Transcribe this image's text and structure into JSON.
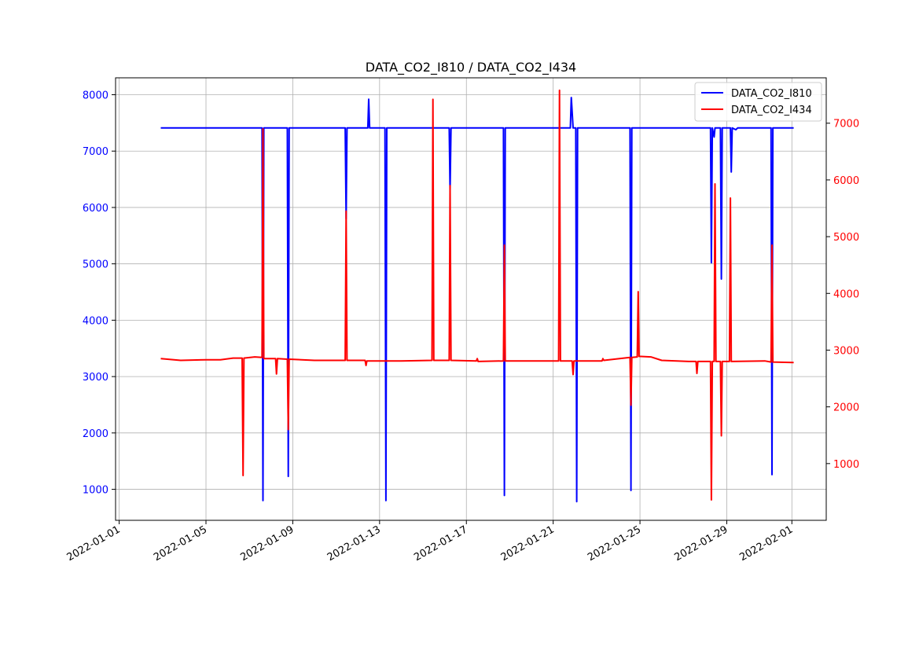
{
  "chart_data": {
    "type": "line",
    "title": "DATA_CO2_I810 / DATA_CO2_I434",
    "xlabel": "",
    "ylabel_left": "",
    "ylabel_right": "",
    "grid": true,
    "legend_position": "top-right",
    "x_ticks": [
      "2022-01-01",
      "2022-01-05",
      "2022-01-09",
      "2022-01-13",
      "2022-01-17",
      "2022-01-21",
      "2022-01-25",
      "2022-01-29",
      "2022-02-01"
    ],
    "xlim": [
      "2021-12-31T20:00",
      "2022-02-02T14:00"
    ],
    "y_left": {
      "lim": [
        450,
        8300
      ],
      "ticks": [
        1000,
        2000,
        3000,
        4000,
        5000,
        6000,
        7000,
        8000
      ],
      "color": "#0000ff"
    },
    "y_right": {
      "lim": [
        0,
        7800
      ],
      "ticks": [
        1000,
        2000,
        3000,
        4000,
        5000,
        6000,
        7000
      ],
      "color": "#ff0000"
    },
    "series": [
      {
        "name": "DATA_CO2_I810",
        "axis": "left",
        "color": "#0000ff",
        "points": [
          [
            "2022-01-02T22:00",
            7410
          ],
          [
            "2022-01-07T14:00",
            7410
          ],
          [
            "2022-01-07T15:00",
            800
          ],
          [
            "2022-01-07T16:00",
            7410
          ],
          [
            "2022-01-08T18:00",
            7410
          ],
          [
            "2022-01-08T19:00",
            1230
          ],
          [
            "2022-01-08T20:00",
            7410
          ],
          [
            "2022-01-11T10:00",
            7410
          ],
          [
            "2022-01-11T11:00",
            5800
          ],
          [
            "2022-01-11T12:00",
            7410
          ],
          [
            "2022-01-12T11:00",
            7410
          ],
          [
            "2022-01-12T12:00",
            7920
          ],
          [
            "2022-01-12T13:00",
            7410
          ],
          [
            "2022-01-13T06:00",
            7410
          ],
          [
            "2022-01-13T07:00",
            800
          ],
          [
            "2022-01-13T08:00",
            7410
          ],
          [
            "2022-01-16T05:00",
            7410
          ],
          [
            "2022-01-16T06:00",
            6300
          ],
          [
            "2022-01-16T07:00",
            7410
          ],
          [
            "2022-01-18T17:00",
            7410
          ],
          [
            "2022-01-18T18:00",
            890
          ],
          [
            "2022-01-18T19:00",
            7410
          ],
          [
            "2022-01-21T19:00",
            7410
          ],
          [
            "2022-01-21T20:00",
            7950
          ],
          [
            "2022-01-21T22:00",
            7410
          ],
          [
            "2022-01-22T01:00",
            7410
          ],
          [
            "2022-01-22T02:00",
            780
          ],
          [
            "2022-01-22T03:00",
            7410
          ],
          [
            "2022-01-24T13:00",
            7410
          ],
          [
            "2022-01-24T14:00",
            980
          ],
          [
            "2022-01-24T15:00",
            7410
          ],
          [
            "2022-01-28T06:00",
            7410
          ],
          [
            "2022-01-28T07:00",
            5020
          ],
          [
            "2022-01-28T08:00",
            7410
          ],
          [
            "2022-01-28T10:00",
            7250
          ],
          [
            "2022-01-28T11:00",
            7410
          ],
          [
            "2022-01-28T17:00",
            7410
          ],
          [
            "2022-01-28T18:00",
            4730
          ],
          [
            "2022-01-28T19:00",
            7410
          ],
          [
            "2022-01-29T04:00",
            7410
          ],
          [
            "2022-01-29T05:00",
            6630
          ],
          [
            "2022-01-29T06:00",
            7410
          ],
          [
            "2022-01-29T10:00",
            7380
          ],
          [
            "2022-01-29T12:00",
            7410
          ],
          [
            "2022-01-31T01:00",
            7410
          ],
          [
            "2022-01-31T02:00",
            1260
          ],
          [
            "2022-01-31T03:00",
            7410
          ],
          [
            "2022-02-01T02:00",
            7410
          ]
        ]
      },
      {
        "name": "DATA_CO2_I434",
        "axis": "right",
        "color": "#ff0000",
        "points": [
          [
            "2022-01-02T22:00",
            2850
          ],
          [
            "2022-01-03T20:00",
            2820
          ],
          [
            "2022-01-05T00:00",
            2830
          ],
          [
            "2022-01-05T16:00",
            2830
          ],
          [
            "2022-01-06T06:00",
            2860
          ],
          [
            "2022-01-06T16:00",
            2860
          ],
          [
            "2022-01-06T17:00",
            790
          ],
          [
            "2022-01-06T18:00",
            2860
          ],
          [
            "2022-01-07T06:00",
            2880
          ],
          [
            "2022-01-07T14:00",
            2870
          ],
          [
            "2022-01-07T15:00",
            6900
          ],
          [
            "2022-01-07T16:00",
            2850
          ],
          [
            "2022-01-08T05:00",
            2850
          ],
          [
            "2022-01-08T06:00",
            2580
          ],
          [
            "2022-01-08T07:00",
            2850
          ],
          [
            "2022-01-08T18:00",
            2840
          ],
          [
            "2022-01-08T19:00",
            1600
          ],
          [
            "2022-01-08T20:00",
            2840
          ],
          [
            "2022-01-10T00:00",
            2820
          ],
          [
            "2022-01-11T10:00",
            2820
          ],
          [
            "2022-01-11T11:00",
            5450
          ],
          [
            "2022-01-11T12:00",
            2820
          ],
          [
            "2022-01-12T08:00",
            2820
          ],
          [
            "2022-01-12T09:00",
            2730
          ],
          [
            "2022-01-12T10:00",
            2810
          ],
          [
            "2022-01-14T00:00",
            2810
          ],
          [
            "2022-01-15T10:00",
            2820
          ],
          [
            "2022-01-15T11:00",
            7420
          ],
          [
            "2022-01-15T12:00",
            2820
          ],
          [
            "2022-01-16T05:00",
            2820
          ],
          [
            "2022-01-16T06:00",
            5900
          ],
          [
            "2022-01-16T07:00",
            2820
          ],
          [
            "2022-01-17T11:00",
            2810
          ],
          [
            "2022-01-17T12:00",
            2850
          ],
          [
            "2022-01-17T13:00",
            2800
          ],
          [
            "2022-01-18T17:00",
            2810
          ],
          [
            "2022-01-18T18:00",
            4850
          ],
          [
            "2022-01-18T19:00",
            2810
          ],
          [
            "2022-01-21T06:00",
            2810
          ],
          [
            "2022-01-21T07:00",
            7580
          ],
          [
            "2022-01-21T08:00",
            2810
          ],
          [
            "2022-01-21T21:00",
            2810
          ],
          [
            "2022-01-21T22:00",
            2570
          ],
          [
            "2022-01-21T23:00",
            2810
          ],
          [
            "2022-01-23T06:00",
            2810
          ],
          [
            "2022-01-23T07:00",
            2850
          ],
          [
            "2022-01-23T08:00",
            2820
          ],
          [
            "2022-01-24T13:00",
            2870
          ],
          [
            "2022-01-24T14:00",
            2030
          ],
          [
            "2022-01-24T15:00",
            2870
          ],
          [
            "2022-01-24T21:00",
            2880
          ],
          [
            "2022-01-24T22:00",
            4030
          ],
          [
            "2022-01-24T23:00",
            2890
          ],
          [
            "2022-01-25T12:00",
            2880
          ],
          [
            "2022-01-26T00:00",
            2820
          ],
          [
            "2022-01-27T06:00",
            2800
          ],
          [
            "2022-01-27T14:00",
            2800
          ],
          [
            "2022-01-27T15:00",
            2590
          ],
          [
            "2022-01-27T16:00",
            2800
          ],
          [
            "2022-01-28T06:00",
            2800
          ],
          [
            "2022-01-28T07:00",
            360
          ],
          [
            "2022-01-28T08:00",
            2800
          ],
          [
            "2022-01-28T10:00",
            2800
          ],
          [
            "2022-01-28T11:00",
            5930
          ],
          [
            "2022-01-28T12:00",
            2800
          ],
          [
            "2022-01-28T17:00",
            2800
          ],
          [
            "2022-01-28T18:00",
            1490
          ],
          [
            "2022-01-28T19:00",
            2800
          ],
          [
            "2022-01-29T03:00",
            2800
          ],
          [
            "2022-01-29T04:00",
            5680
          ],
          [
            "2022-01-29T05:00",
            2800
          ],
          [
            "2022-01-30T18:00",
            2810
          ],
          [
            "2022-01-31T01:00",
            2790
          ],
          [
            "2022-01-31T02:00",
            4850
          ],
          [
            "2022-01-31T03:00",
            2790
          ],
          [
            "2022-02-01T02:00",
            2780
          ]
        ]
      }
    ]
  }
}
